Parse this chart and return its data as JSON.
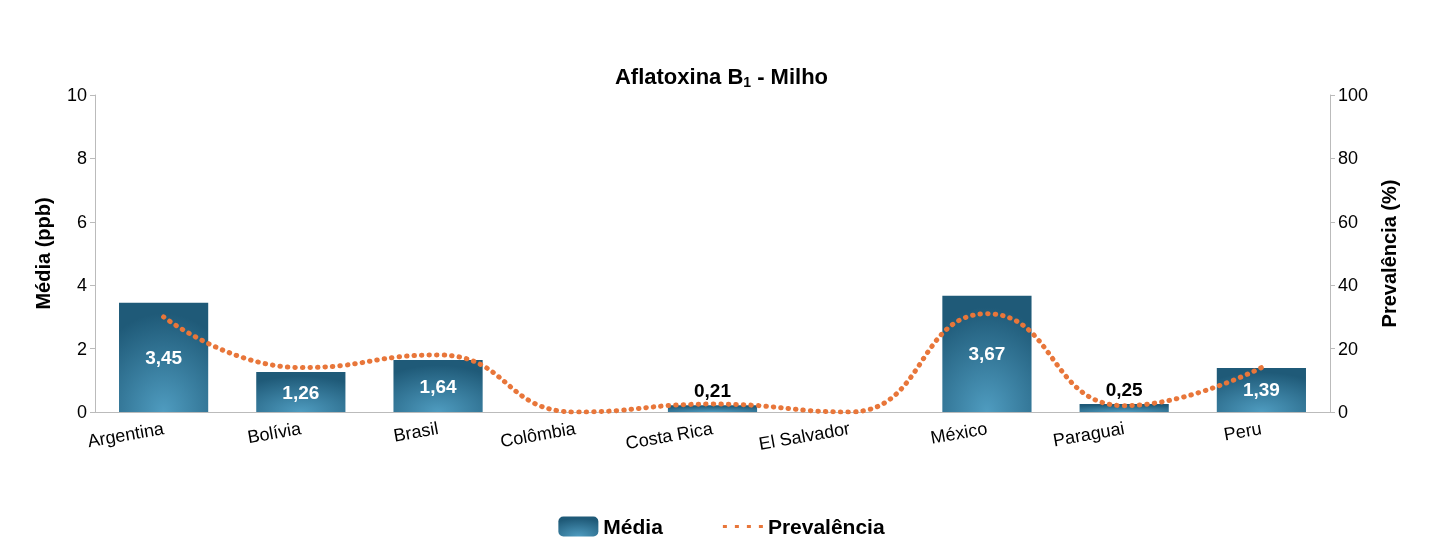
{
  "chart_data": {
    "type": "bar",
    "title": "Aflatoxina B$_{1}$ - Milho",
    "ylabel": "Média (ppb)",
    "y2label": "Prevalência (%)",
    "categories": [
      "Argentina",
      "Bolívia",
      "Brasil",
      "Colômbia",
      "Costa Rica",
      "El Salvador",
      "México",
      "Paraguai",
      "Peru"
    ],
    "series": [
      {
        "name": "Média",
        "color": "#1f5a78",
        "values": [
          3.45,
          1.26,
          1.64,
          0,
          0.21,
          0,
          3.67,
          0.25,
          1.39
        ],
        "value_labels": [
          "3,45",
          "1,26",
          "1,64",
          null,
          "0,21",
          null,
          "3,67",
          "0,25",
          "1,39"
        ]
      },
      {
        "name": "Prevalência",
        "type": "line",
        "axis": "y2",
        "color": "#e8763a",
        "line_style": "dotted",
        "values": [
          30,
          14,
          18,
          0,
          2.5,
          0,
          31,
          2,
          14
        ]
      }
    ],
    "ylim": [
      0,
      10
    ],
    "yticks": [
      0,
      2,
      4,
      6,
      8,
      10
    ],
    "y2lim": [
      0,
      100
    ],
    "y2ticks": [
      0,
      20,
      40,
      60,
      80,
      100
    ],
    "grid": false,
    "legend": "bottom",
    "marker": "none"
  }
}
